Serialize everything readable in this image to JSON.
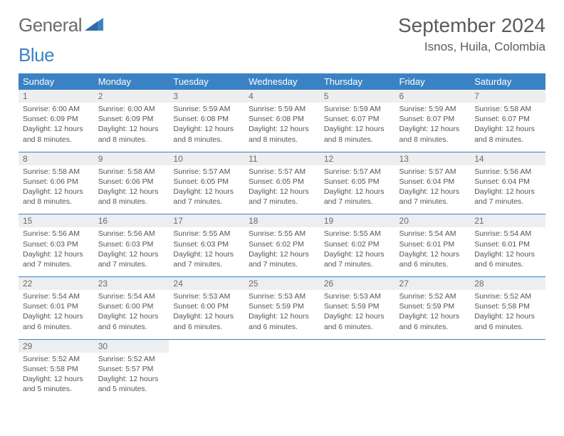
{
  "logo": {
    "text1": "General",
    "text2": "Blue"
  },
  "title": "September 2024",
  "location": "Isnos, Huila, Colombia",
  "colors": {
    "header_bg": "#3b82c4",
    "header_text": "#ffffff",
    "daynum_bg": "#eceef0",
    "text": "#555555",
    "rule": "#3b82c4"
  },
  "day_names": [
    "Sunday",
    "Monday",
    "Tuesday",
    "Wednesday",
    "Thursday",
    "Friday",
    "Saturday"
  ],
  "weeks": [
    [
      {
        "n": "1",
        "sr": "6:00 AM",
        "ss": "6:09 PM",
        "dl": "12 hours and 8 minutes."
      },
      {
        "n": "2",
        "sr": "6:00 AM",
        "ss": "6:09 PM",
        "dl": "12 hours and 8 minutes."
      },
      {
        "n": "3",
        "sr": "5:59 AM",
        "ss": "6:08 PM",
        "dl": "12 hours and 8 minutes."
      },
      {
        "n": "4",
        "sr": "5:59 AM",
        "ss": "6:08 PM",
        "dl": "12 hours and 8 minutes."
      },
      {
        "n": "5",
        "sr": "5:59 AM",
        "ss": "6:07 PM",
        "dl": "12 hours and 8 minutes."
      },
      {
        "n": "6",
        "sr": "5:59 AM",
        "ss": "6:07 PM",
        "dl": "12 hours and 8 minutes."
      },
      {
        "n": "7",
        "sr": "5:58 AM",
        "ss": "6:07 PM",
        "dl": "12 hours and 8 minutes."
      }
    ],
    [
      {
        "n": "8",
        "sr": "5:58 AM",
        "ss": "6:06 PM",
        "dl": "12 hours and 8 minutes."
      },
      {
        "n": "9",
        "sr": "5:58 AM",
        "ss": "6:06 PM",
        "dl": "12 hours and 8 minutes."
      },
      {
        "n": "10",
        "sr": "5:57 AM",
        "ss": "6:05 PM",
        "dl": "12 hours and 7 minutes."
      },
      {
        "n": "11",
        "sr": "5:57 AM",
        "ss": "6:05 PM",
        "dl": "12 hours and 7 minutes."
      },
      {
        "n": "12",
        "sr": "5:57 AM",
        "ss": "6:05 PM",
        "dl": "12 hours and 7 minutes."
      },
      {
        "n": "13",
        "sr": "5:57 AM",
        "ss": "6:04 PM",
        "dl": "12 hours and 7 minutes."
      },
      {
        "n": "14",
        "sr": "5:56 AM",
        "ss": "6:04 PM",
        "dl": "12 hours and 7 minutes."
      }
    ],
    [
      {
        "n": "15",
        "sr": "5:56 AM",
        "ss": "6:03 PM",
        "dl": "12 hours and 7 minutes."
      },
      {
        "n": "16",
        "sr": "5:56 AM",
        "ss": "6:03 PM",
        "dl": "12 hours and 7 minutes."
      },
      {
        "n": "17",
        "sr": "5:55 AM",
        "ss": "6:03 PM",
        "dl": "12 hours and 7 minutes."
      },
      {
        "n": "18",
        "sr": "5:55 AM",
        "ss": "6:02 PM",
        "dl": "12 hours and 7 minutes."
      },
      {
        "n": "19",
        "sr": "5:55 AM",
        "ss": "6:02 PM",
        "dl": "12 hours and 7 minutes."
      },
      {
        "n": "20",
        "sr": "5:54 AM",
        "ss": "6:01 PM",
        "dl": "12 hours and 6 minutes."
      },
      {
        "n": "21",
        "sr": "5:54 AM",
        "ss": "6:01 PM",
        "dl": "12 hours and 6 minutes."
      }
    ],
    [
      {
        "n": "22",
        "sr": "5:54 AM",
        "ss": "6:01 PM",
        "dl": "12 hours and 6 minutes."
      },
      {
        "n": "23",
        "sr": "5:54 AM",
        "ss": "6:00 PM",
        "dl": "12 hours and 6 minutes."
      },
      {
        "n": "24",
        "sr": "5:53 AM",
        "ss": "6:00 PM",
        "dl": "12 hours and 6 minutes."
      },
      {
        "n": "25",
        "sr": "5:53 AM",
        "ss": "5:59 PM",
        "dl": "12 hours and 6 minutes."
      },
      {
        "n": "26",
        "sr": "5:53 AM",
        "ss": "5:59 PM",
        "dl": "12 hours and 6 minutes."
      },
      {
        "n": "27",
        "sr": "5:52 AM",
        "ss": "5:59 PM",
        "dl": "12 hours and 6 minutes."
      },
      {
        "n": "28",
        "sr": "5:52 AM",
        "ss": "5:58 PM",
        "dl": "12 hours and 6 minutes."
      }
    ],
    [
      {
        "n": "29",
        "sr": "5:52 AM",
        "ss": "5:58 PM",
        "dl": "12 hours and 5 minutes."
      },
      {
        "n": "30",
        "sr": "5:52 AM",
        "ss": "5:57 PM",
        "dl": "12 hours and 5 minutes."
      },
      null,
      null,
      null,
      null,
      null
    ]
  ],
  "labels": {
    "sunrise": "Sunrise: ",
    "sunset": "Sunset: ",
    "daylight": "Daylight: "
  }
}
